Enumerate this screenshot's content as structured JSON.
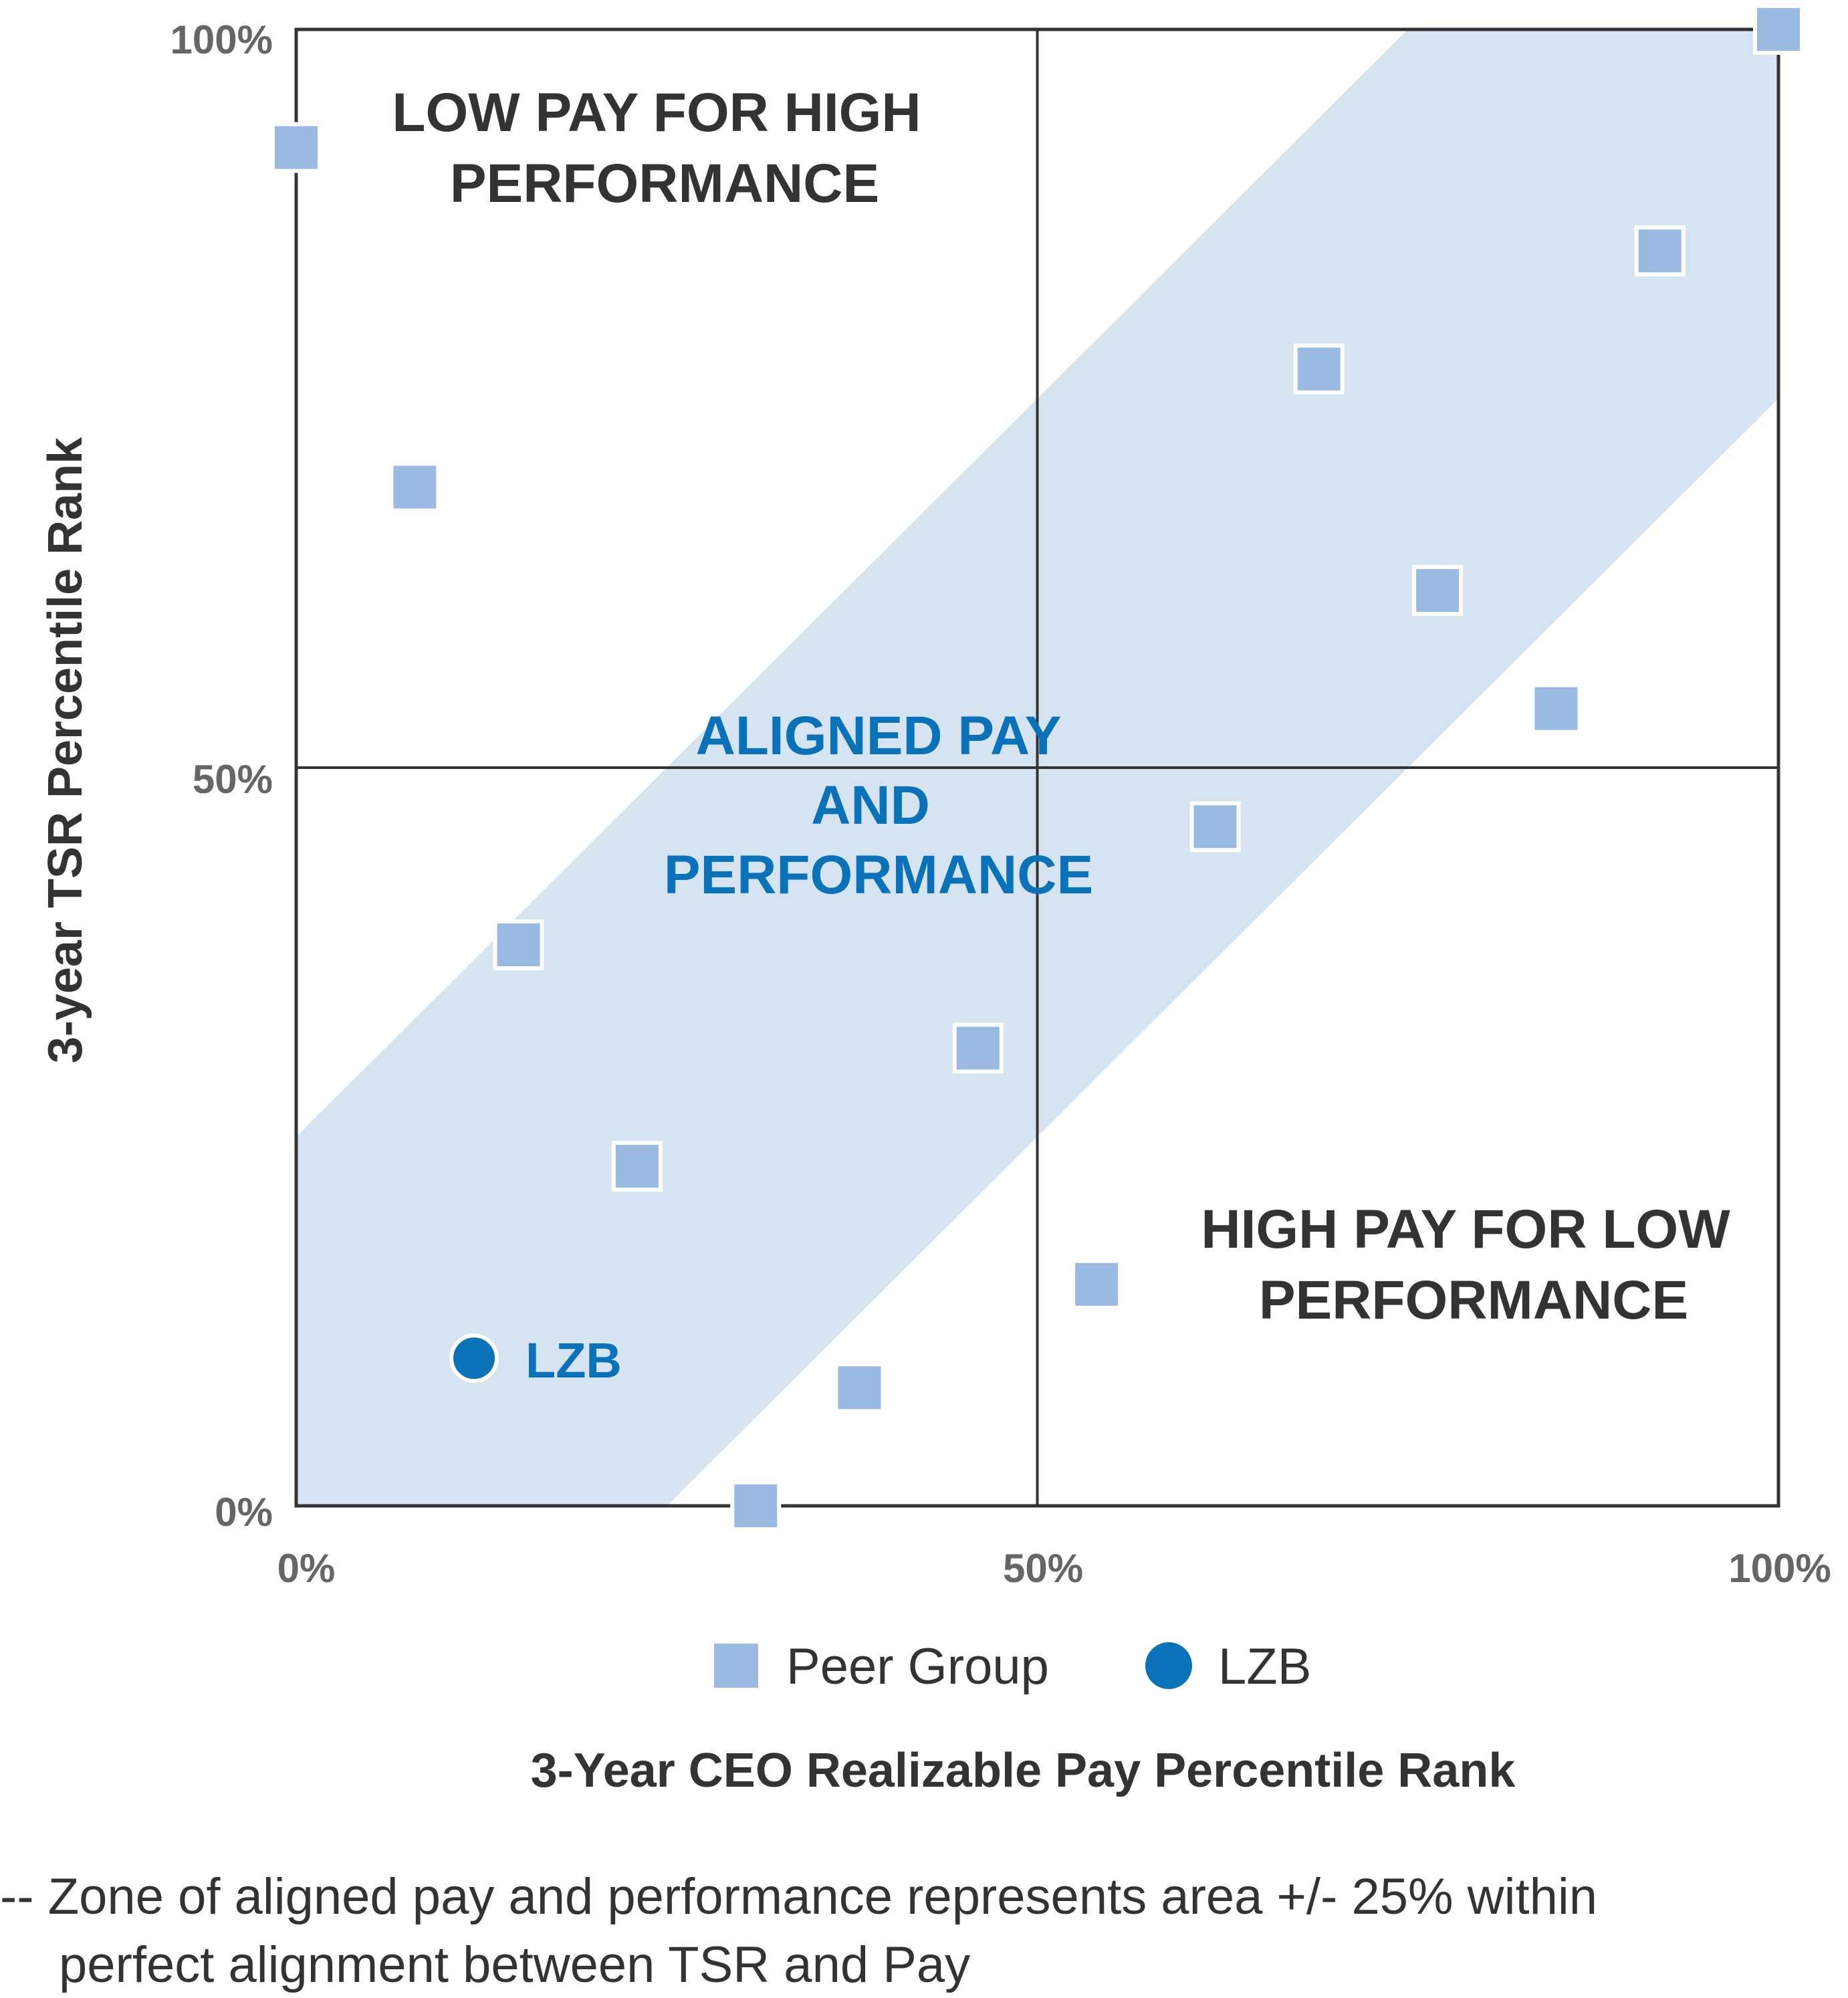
{
  "chart_data": {
    "type": "scatter",
    "xlabel": "3-Year CEO Realizable Pay Percentile Rank",
    "ylabel": "3-year TSR Percentile Rank",
    "xlim": [
      0,
      100
    ],
    "ylim": [
      0,
      100
    ],
    "x_ticks": [
      "0%",
      "50%",
      "100%"
    ],
    "y_ticks": [
      "0%",
      "50%",
      "100%"
    ],
    "grid": false,
    "alignment_band": {
      "offset": 25,
      "color": "#d6e3f1"
    },
    "quadrant_labels": {
      "top_left": [
        "LOW PAY FOR HIGH",
        "PERFORMANCE"
      ],
      "bottom_right": [
        "HIGH PAY FOR LOW",
        "PERFORMANCE"
      ],
      "center": [
        "ALIGNED PAY",
        "AND",
        "PERFORMANCE"
      ]
    },
    "series": [
      {
        "name": "Peer Group",
        "marker": "square",
        "color": "#9bbae2",
        "points": [
          {
            "x": 0,
            "y": 92
          },
          {
            "x": 8,
            "y": 69
          },
          {
            "x": 15,
            "y": 38
          },
          {
            "x": 23,
            "y": 23
          },
          {
            "x": 31,
            "y": 0
          },
          {
            "x": 38,
            "y": 8
          },
          {
            "x": 46,
            "y": 31
          },
          {
            "x": 54,
            "y": 15
          },
          {
            "x": 62,
            "y": 46
          },
          {
            "x": 69,
            "y": 77
          },
          {
            "x": 77,
            "y": 62
          },
          {
            "x": 85,
            "y": 54
          },
          {
            "x": 92,
            "y": 85
          },
          {
            "x": 100,
            "y": 100
          }
        ]
      },
      {
        "name": "LZB",
        "marker": "circle",
        "color": "#0a72b8",
        "points": [
          {
            "x": 12,
            "y": 10,
            "label": "LZB"
          }
        ]
      }
    ],
    "legend": {
      "position": "bottom",
      "entries": [
        "Peer Group",
        "LZB"
      ]
    }
  },
  "footnote": {
    "line1": "-- Zone of aligned pay and performance represents area +/- 25% within",
    "line2": "perfect alignment between TSR and Pay"
  },
  "colors": {
    "axis": "#333333",
    "band": "#d6e3f1",
    "peer": "#9bbae2",
    "lzb": "#0a72b8"
  }
}
